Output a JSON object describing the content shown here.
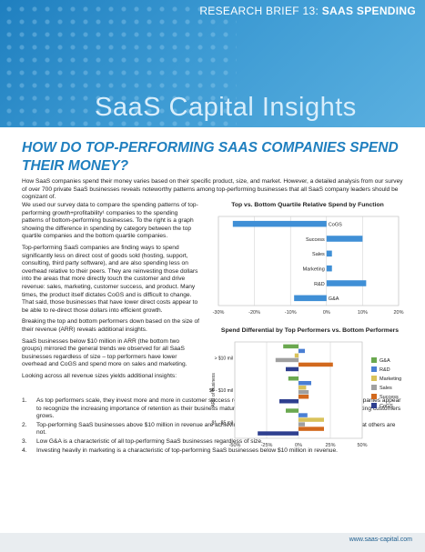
{
  "header": {
    "brief_prefix": "RESEARCH BRIEF 13: ",
    "brief_topic": "SAAS SPENDING",
    "brand": "SaaS Capital Insights"
  },
  "title": "HOW DO TOP-PERFORMING SAAS COMPANIES SPEND THEIR MONEY?",
  "intro": "How SaaS companies spend their money varies based on their specific product, size, and market. However, a detailed analysis from our survey of over 700 private SaaS businesses reveals noteworthy patterns among top-performing businesses that all SaaS company leaders should be cognizant of.",
  "paragraphs": [
    "We used our survey data to compare the spending patterns of top-performing growth+profitability¹ companies to the spending patterns of bottom-performing businesses. To the right is a graph showing the difference in spending by category between the top quartile companies and the bottom quartile companies.",
    "Top-performing SaaS companies are finding ways to spend significantly less on direct cost of goods sold (hosting, support, consulting, third party software), and are also spending less on overhead relative to their peers. They are reinvesting those dollars into the areas that more directly touch the customer and drive revenue: sales, marketing, customer success, and product. Many times, the product itself dictates CoGS and is difficult to change. That said, those businesses that have lower direct costs appear to be able to re-direct those dollars into efficient growth.",
    "Breaking the top and bottom performers down based on the size of their revenue (ARR) reveals additional insights.",
    "SaaS businesses below $10 million in ARR (the bottom two groups) mirrored the general trends we observed for all SaaS businesses regardless of size – top performers have lower overhead and CoGS and spend more on sales and marketing.",
    "Looking across all revenue sizes yields additional insights:"
  ],
  "list": [
    {
      "num": "1.",
      "text": "As top performers scale, they invest more and more in customer success relative to their less successful peers. These companies appear to recognize the increasing importance of retention as their business matures and the percent of revenue coming from existing customers grows."
    },
    {
      "num": "2.",
      "text": "Top-performing SaaS businesses above $10 million in revenue are achieving economies of scale in sales and marketing that others are not."
    },
    {
      "num": "3.",
      "text": "Low G&A is a characteristic of all top-performing SaaS businesses regardless of size."
    },
    {
      "num": "4.",
      "text": "Investing heavily in marketing is a characteristic of top-performing SaaS businesses below $10 million in revenue."
    }
  ],
  "footer": {
    "url": "www.saas-capital.com"
  },
  "colors": {
    "bar": "#3f8fd6",
    "accent": "#1f7fbf"
  },
  "chart_data": [
    {
      "type": "bar",
      "orientation": "horizontal",
      "title": "Top vs. Bottom Quartile Relative Spend by Function",
      "categories": [
        "CoGS",
        "Success",
        "Sales",
        "Marketing",
        "R&D",
        "G&A"
      ],
      "values": [
        -26,
        10,
        1.5,
        1.5,
        11,
        -9
      ],
      "xlim": [
        -30,
        20
      ],
      "xticks": [
        "-30%",
        "-20%",
        "-10%",
        "0%",
        "10%",
        "20%"
      ],
      "grid": true
    },
    {
      "type": "bar",
      "orientation": "horizontal",
      "title": "Spend Differential by Top Performers vs. Bottom Performers",
      "ylabel": "ARR of Business",
      "categories": [
        "> $10 mil",
        "$5 - $10 mil",
        "$1 - $5 mil"
      ],
      "series": [
        {
          "name": "G&A",
          "color": "#6aa84f",
          "values": [
            -12,
            -8,
            -10
          ]
        },
        {
          "name": "R&D",
          "color": "#4a7fd4",
          "values": [
            5,
            10,
            7
          ]
        },
        {
          "name": "Marketing",
          "color": "#d9c25a",
          "values": [
            -3,
            6,
            20
          ]
        },
        {
          "name": "Sales",
          "color": "#a0a0a0",
          "values": [
            -18,
            8,
            5
          ]
        },
        {
          "name": "Success",
          "color": "#d2691e",
          "values": [
            27,
            8,
            20
          ]
        },
        {
          "name": "CoGS",
          "color": "#2e3f8f",
          "values": [
            -10,
            -15,
            -32
          ]
        }
      ],
      "xlim": [
        -50,
        50
      ],
      "xticks": [
        "-50%",
        "-25%",
        "0%",
        "25%",
        "50%"
      ],
      "legend": "right",
      "grid": true
    }
  ]
}
